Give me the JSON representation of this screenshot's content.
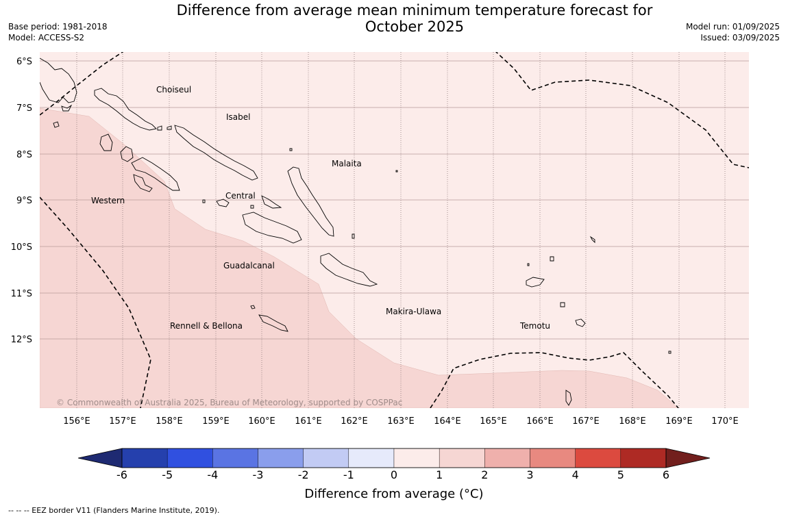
{
  "title_line1": "Difference from average mean minimum temperature forecast for",
  "title_line2": "October 2025",
  "base_period": "Base period: 1981-2018",
  "model": "Model: ACCESS-S2",
  "model_run": "Model run: 01/09/2025",
  "issued": "Issued: 03/09/2025",
  "lat_labels": [
    "6°S",
    "7°S",
    "8°S",
    "9°S",
    "10°S",
    "11°S",
    "12°S"
  ],
  "lon_labels": [
    "156°E",
    "157°E",
    "158°E",
    "159°E",
    "160°E",
    "161°E",
    "162°E",
    "163°E",
    "164°E",
    "165°E",
    "166°E",
    "167°E",
    "168°E",
    "169°E",
    "170°E"
  ],
  "regions": [
    "Choiseul",
    "Isabel",
    "Malaita",
    "Western",
    "Central",
    "Guadalcanal",
    "Makira-Ulawa",
    "Rennell & Bellona",
    "Temotu"
  ],
  "copyright": "© Commonwealth of Australia 2025, Bureau of Meteorology, supported by COSPPac",
  "colorbar": {
    "ticks": [
      "-6",
      "-5",
      "-4",
      "-3",
      "-2",
      "-1",
      "0",
      "1",
      "2",
      "3",
      "4",
      "5",
      "6"
    ],
    "colors": [
      "#2540ad",
      "#3050e0",
      "#5a74e3",
      "#8a9eec",
      "#c2cbf4",
      "#e6eafb",
      "#fcecea",
      "#f6d6d3",
      "#efb0ac",
      "#e88980",
      "#dc4a3f",
      "#ae2a24"
    ],
    "under_color": "#1e2a72",
    "over_color": "#721f1d",
    "label": "Difference from average (°C)"
  },
  "forecast_categories": {
    "light": "#fcecea",
    "medium": "#f6d6d3"
  },
  "eez_note": "--  --  -- EEZ border V11 (Flanders Marine Institute, 2019)."
}
